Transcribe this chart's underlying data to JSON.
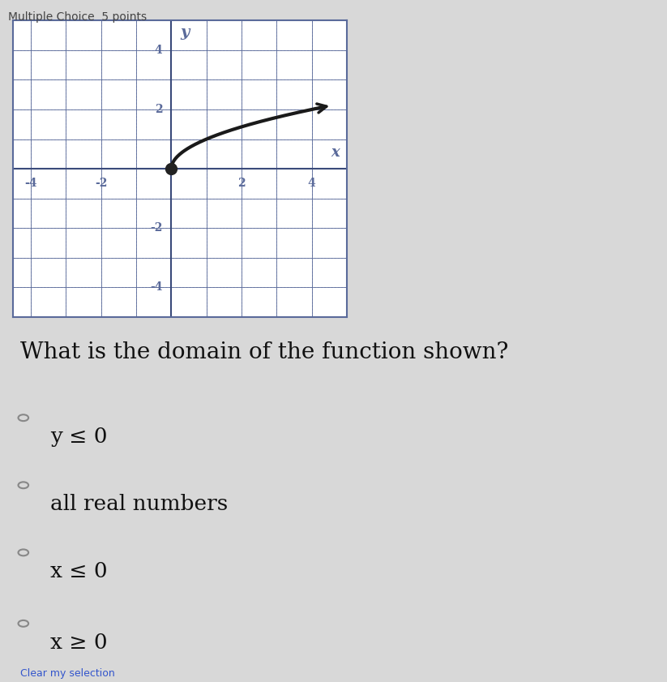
{
  "title": "Multiple Choice  5 points",
  "question": "What is the domain of the function shown?",
  "choices": [
    {
      "label": "y ≤ 0",
      "selected": false
    },
    {
      "label": "all real numbers",
      "selected": false
    },
    {
      "label": "x ≤ 0",
      "selected": false
    },
    {
      "label": "x ≥ 0",
      "selected": false
    }
  ],
  "graph": {
    "xlim": [
      -4.5,
      5.0
    ],
    "ylim": [
      -5.0,
      5.0
    ],
    "xticks": [
      -4,
      -2,
      2,
      4
    ],
    "yticks": [
      -4,
      -2,
      2,
      4
    ],
    "xlabel": "x",
    "ylabel": "y",
    "grid_major_color": "#5a6a9a",
    "grid_minor_color": "#8a9aba",
    "axis_color": "#3a4a7a",
    "curve_color": "#1a1a1a",
    "dot_color": "#222222",
    "curve_linewidth": 3.0,
    "bg_color": "#ffffff"
  },
  "page_bg": "#d8d8d8",
  "footer": "Clear my selection",
  "radio_color": "#888888",
  "text_color": "#111111",
  "title_color": "#444444",
  "question_fontsize": 20,
  "choice_fontsize": 19,
  "title_fontsize": 10
}
